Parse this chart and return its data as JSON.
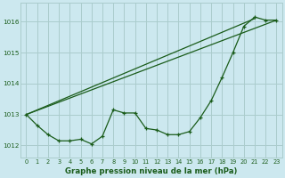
{
  "bg_color": "#cce8ef",
  "grid_color": "#aacccc",
  "line_color": "#1a5c1a",
  "title": "Graphe pression niveau de la mer (hPa)",
  "xlim": [
    -0.5,
    23.5
  ],
  "ylim": [
    1011.6,
    1016.6
  ],
  "yticks": [
    1012,
    1013,
    1014,
    1015,
    1016
  ],
  "xticks": [
    0,
    1,
    2,
    3,
    4,
    5,
    6,
    7,
    8,
    9,
    10,
    11,
    12,
    13,
    14,
    15,
    16,
    17,
    18,
    19,
    20,
    21,
    22,
    23
  ],
  "series1_x": [
    0,
    1,
    2,
    3,
    4,
    5,
    6,
    7,
    8,
    9,
    10,
    11,
    12,
    13,
    14,
    15,
    16,
    17,
    18,
    19,
    20,
    21,
    22,
    23
  ],
  "series1_y": [
    1013.0,
    1012.65,
    1012.35,
    1012.15,
    1012.15,
    1012.2,
    1012.05,
    1012.3,
    1013.15,
    1013.05,
    1013.05,
    1012.55,
    1012.5,
    1012.35,
    1012.35,
    1012.45,
    1012.9,
    1013.45,
    1014.2,
    1015.0,
    1015.85,
    1016.15,
    1016.05,
    1016.05
  ],
  "series2_x": [
    0,
    23
  ],
  "series2_y": [
    1013.0,
    1016.05
  ],
  "series3_x": [
    0,
    21
  ],
  "series3_y": [
    1013.0,
    1016.1
  ]
}
